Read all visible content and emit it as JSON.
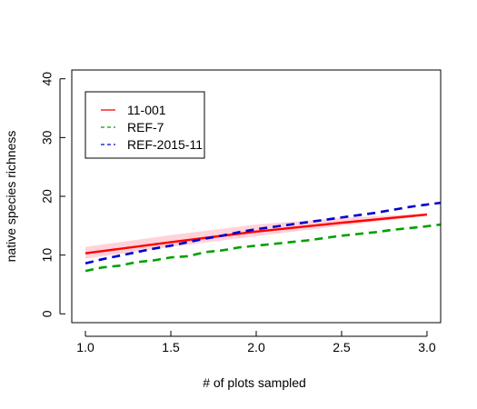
{
  "chart_data": {
    "type": "line",
    "title": "",
    "xlabel": "# of plots sampled",
    "ylabel": "native species richness",
    "xlim": [
      0.92,
      3.08
    ],
    "ylim": [
      -1.5,
      41.5
    ],
    "x_ticks": [
      "1.0",
      "1.5",
      "2.0",
      "2.5",
      "3.0"
    ],
    "x_tick_values": [
      1.0,
      1.5,
      2.0,
      2.5,
      3.0
    ],
    "y_ticks": [
      "0",
      "10",
      "20",
      "30",
      "40"
    ],
    "y_tick_values": [
      0,
      10,
      20,
      30,
      40
    ],
    "grid": false,
    "legend_position": "top-left",
    "series": [
      {
        "name": "11-001",
        "style": "solid",
        "color": "#ff0000",
        "band_color": "#ffc0cb",
        "x": [
          1.0,
          1.5,
          2.0,
          2.5,
          3.0
        ],
        "values": [
          10.3,
          12.2,
          14.0,
          15.5,
          16.9
        ],
        "band_lower": [
          9.4,
          11.4,
          13.2,
          15.0,
          16.7
        ],
        "band_upper": [
          11.4,
          13.4,
          15.2,
          16.3,
          17.1
        ]
      },
      {
        "name": "REF-7",
        "style": "dashed",
        "color": "#00a000",
        "x": [
          1.0,
          1.1,
          1.2,
          1.3,
          1.4,
          1.5,
          1.6,
          1.7,
          1.8,
          1.9,
          2.0,
          2.1,
          2.2,
          2.3,
          2.4,
          2.5,
          2.6,
          2.7,
          2.8,
          2.9,
          3.0,
          3.08
        ],
        "values": [
          7.3,
          7.9,
          8.2,
          8.8,
          9.1,
          9.6,
          9.8,
          10.5,
          10.8,
          11.3,
          11.6,
          11.9,
          12.2,
          12.5,
          12.9,
          13.3,
          13.6,
          13.9,
          14.3,
          14.6,
          14.9,
          15.2
        ]
      },
      {
        "name": "REF-2015-11",
        "style": "dashed",
        "color": "#0000cd",
        "x": [
          1.0,
          1.1,
          1.2,
          1.3,
          1.4,
          1.5,
          1.6,
          1.7,
          1.8,
          1.9,
          2.0,
          2.1,
          2.2,
          2.3,
          2.4,
          2.5,
          2.6,
          2.7,
          2.8,
          2.9,
          3.0,
          3.08
        ],
        "values": [
          8.6,
          9.3,
          9.9,
          10.5,
          11.1,
          11.6,
          12.2,
          12.8,
          13.3,
          13.9,
          14.4,
          14.8,
          15.2,
          15.6,
          16.0,
          16.4,
          16.8,
          17.2,
          17.7,
          18.2,
          18.6,
          18.9
        ]
      }
    ]
  }
}
